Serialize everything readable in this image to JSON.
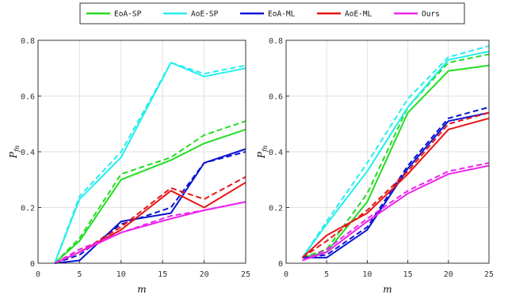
{
  "legend": {
    "entries": [
      {
        "label": "EoA-SP",
        "color": "#22dd22"
      },
      {
        "label": "AoE-SP",
        "color": "#22eeee"
      },
      {
        "label": "EoA-ML",
        "color": "#0a14d2"
      },
      {
        "label": "AoE-ML",
        "color": "#e81414"
      },
      {
        "label": "Ours",
        "color": "#ee22ee"
      }
    ]
  },
  "chart_data": [
    {
      "type": "line",
      "xlabel": "m",
      "ylabel": "P",
      "ylabel_sub": "fn",
      "xlim": [
        0,
        25
      ],
      "ylim": [
        0,
        0.8
      ],
      "xticks": [
        "0",
        "5",
        "10",
        "15",
        "20",
        "25"
      ],
      "yticks": [
        "0",
        "0.2",
        "0.4",
        "0.6",
        "0.8"
      ],
      "grid": true,
      "x": [
        2,
        5,
        10,
        16,
        20,
        25
      ],
      "series": [
        {
          "name": "EoA-SP",
          "color": "#22dd22",
          "style": "solid",
          "values": [
            0.0,
            0.08,
            0.3,
            0.37,
            0.43,
            0.48
          ]
        },
        {
          "name": "EoA-SP",
          "color": "#22dd22",
          "style": "dashed",
          "values": [
            0.0,
            0.09,
            0.32,
            0.38,
            0.46,
            0.51
          ]
        },
        {
          "name": "AoE-SP",
          "color": "#22eeee",
          "style": "solid",
          "values": [
            0.0,
            0.23,
            0.38,
            0.72,
            0.67,
            0.7
          ]
        },
        {
          "name": "AoE-SP",
          "color": "#22eeee",
          "style": "dashed",
          "values": [
            0.0,
            0.24,
            0.4,
            0.72,
            0.68,
            0.71
          ]
        },
        {
          "name": "EoA-ML",
          "color": "#0a14d2",
          "style": "solid",
          "values": [
            0.0,
            0.01,
            0.15,
            0.18,
            0.36,
            0.41
          ]
        },
        {
          "name": "EoA-ML",
          "color": "#0a14d2",
          "style": "dashed",
          "values": [
            0.0,
            0.03,
            0.14,
            0.2,
            0.36,
            0.4
          ]
        },
        {
          "name": "AoE-ML",
          "color": "#e81414",
          "style": "solid",
          "values": [
            0.0,
            0.04,
            0.12,
            0.26,
            0.2,
            0.29
          ]
        },
        {
          "name": "AoE-ML",
          "color": "#e81414",
          "style": "dashed",
          "values": [
            0.0,
            0.04,
            0.13,
            0.27,
            0.23,
            0.31
          ]
        },
        {
          "name": "Ours",
          "color": "#ee22ee",
          "style": "solid",
          "values": [
            0.0,
            0.04,
            0.11,
            0.16,
            0.19,
            0.22
          ]
        },
        {
          "name": "Ours",
          "color": "#ee22ee",
          "style": "dashed",
          "values": [
            0.0,
            0.05,
            0.11,
            0.17,
            0.19,
            0.22
          ]
        }
      ]
    },
    {
      "type": "line",
      "xlabel": "m",
      "ylabel": "P",
      "ylabel_sub": "fn",
      "xlim": [
        0,
        25
      ],
      "ylim": [
        0,
        0.8
      ],
      "xticks": [
        "0",
        "5",
        "10",
        "15",
        "20",
        "25"
      ],
      "yticks": [
        "0",
        "0.2",
        "0.4",
        "0.6",
        "0.8"
      ],
      "grid": true,
      "x": [
        2,
        5,
        10,
        15,
        20,
        25
      ],
      "series": [
        {
          "name": "EoA-SP",
          "color": "#22dd22",
          "style": "solid",
          "values": [
            0.02,
            0.04,
            0.22,
            0.54,
            0.69,
            0.71
          ]
        },
        {
          "name": "EoA-SP",
          "color": "#22dd22",
          "style": "dashed",
          "values": [
            0.02,
            0.05,
            0.25,
            0.56,
            0.72,
            0.75
          ]
        },
        {
          "name": "AoE-SP",
          "color": "#22eeee",
          "style": "solid",
          "values": [
            0.02,
            0.14,
            0.33,
            0.56,
            0.73,
            0.76
          ]
        },
        {
          "name": "AoE-SP",
          "color": "#22eeee",
          "style": "dashed",
          "values": [
            0.02,
            0.15,
            0.36,
            0.59,
            0.74,
            0.78
          ]
        },
        {
          "name": "EoA-ML",
          "color": "#0a14d2",
          "style": "solid",
          "values": [
            0.02,
            0.02,
            0.12,
            0.34,
            0.51,
            0.54
          ]
        },
        {
          "name": "EoA-ML",
          "color": "#0a14d2",
          "style": "dashed",
          "values": [
            0.02,
            0.03,
            0.13,
            0.35,
            0.52,
            0.56
          ]
        },
        {
          "name": "AoE-ML",
          "color": "#e81414",
          "style": "solid",
          "values": [
            0.02,
            0.1,
            0.18,
            0.32,
            0.48,
            0.52
          ]
        },
        {
          "name": "AoE-ML",
          "color": "#e81414",
          "style": "dashed",
          "values": [
            0.02,
            0.08,
            0.19,
            0.33,
            0.5,
            0.54
          ]
        },
        {
          "name": "Ours",
          "color": "#ee22ee",
          "style": "solid",
          "values": [
            0.01,
            0.04,
            0.15,
            0.25,
            0.32,
            0.35
          ]
        },
        {
          "name": "Ours",
          "color": "#ee22ee",
          "style": "dashed",
          "values": [
            0.01,
            0.05,
            0.16,
            0.26,
            0.33,
            0.36
          ]
        }
      ]
    }
  ]
}
